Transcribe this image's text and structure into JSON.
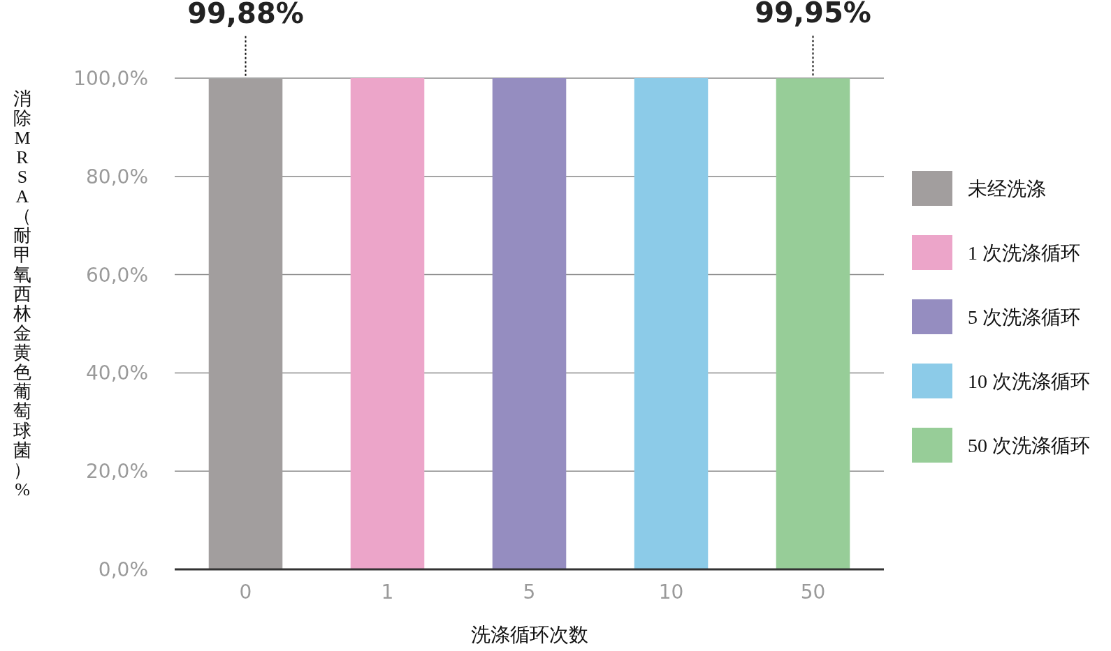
{
  "chart_data": {
    "type": "bar",
    "xlabel": "洗涤循环次数",
    "ylabel": "消除 MRSA（耐甲氧西林金黄色葡萄球菌）%",
    "categories": [
      "0",
      "1",
      "5",
      "10",
      "50"
    ],
    "series": [
      {
        "name": "未经洗涤",
        "color": "#a29e9e",
        "values": [
          99.88,
          null,
          null,
          null,
          null
        ],
        "value_labels": [
          "99,88%",
          null,
          null,
          null,
          null
        ]
      },
      {
        "name": "1 次洗涤循环",
        "color": "#eca5c9",
        "values": [
          null,
          100,
          null,
          null,
          null
        ]
      },
      {
        "name": "5 次洗涤循环",
        "color": "#958dc0",
        "values": [
          null,
          null,
          100,
          null,
          null
        ]
      },
      {
        "name": "10 次洗涤循环",
        "color": "#8ccbe8",
        "values": [
          null,
          null,
          null,
          100,
          null
        ]
      },
      {
        "name": "50 次洗涤循环",
        "color": "#97cd98",
        "values": [
          null,
          null,
          null,
          null,
          99.95
        ],
        "value_labels": [
          null,
          null,
          null,
          null,
          "99,95%"
        ]
      }
    ],
    "ylim": [
      0,
      100
    ],
    "yticks": [
      {
        "value": 0,
        "label": "0,0%"
      },
      {
        "value": 20,
        "label": "20,0%"
      },
      {
        "value": 40,
        "label": "40,0%"
      },
      {
        "value": 60,
        "label": "60,0%"
      },
      {
        "value": 80,
        "label": "80,0%"
      },
      {
        "value": 100,
        "label": "100,0%"
      }
    ],
    "grid": "y",
    "legend": "right"
  }
}
